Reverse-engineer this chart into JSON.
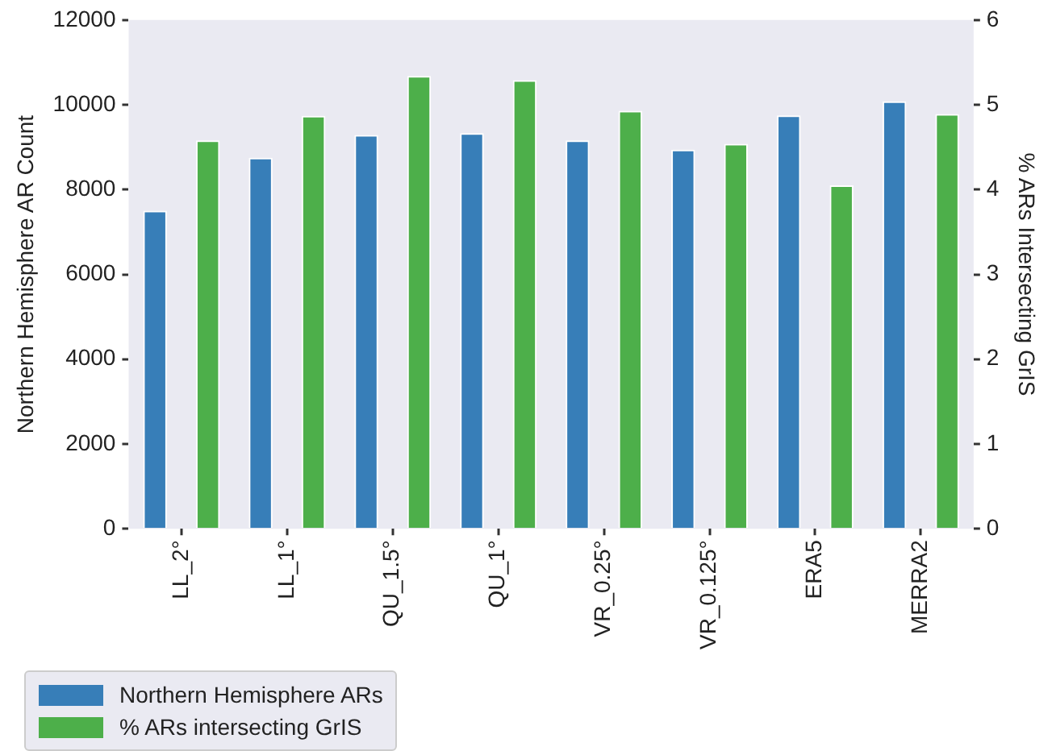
{
  "chart_data": {
    "type": "bar",
    "categories": [
      "LL_2°",
      "LL_1°",
      "QU_1.5°",
      "QU_1°",
      "VR_0.25°",
      "VR_0.125°",
      "ERA5",
      "MERRA2"
    ],
    "series": [
      {
        "name": "Northern Hemisphere ARs",
        "color": "#377eb8",
        "values": [
          7500,
          8750,
          9290,
          9330,
          9160,
          8940,
          9750,
          10080
        ]
      },
      {
        "name": "% ARs intersecting GrIS",
        "color": "#4daf4a",
        "axis": "y2",
        "values": [
          4.58,
          4.87,
          5.34,
          5.29,
          4.93,
          4.54,
          4.05,
          4.89
        ]
      }
    ],
    "ylabel": "Northern Hemisphere AR Count",
    "y2label": "% ARs Intersecting GrIS",
    "ylim": [
      0,
      12000
    ],
    "yticks": [
      0,
      2000,
      4000,
      6000,
      8000,
      10000,
      12000
    ],
    "y2lim": [
      0,
      6
    ],
    "y2ticks": [
      0,
      1,
      2,
      3,
      4,
      5,
      6
    ],
    "grid": false,
    "legend": "bottom left"
  }
}
